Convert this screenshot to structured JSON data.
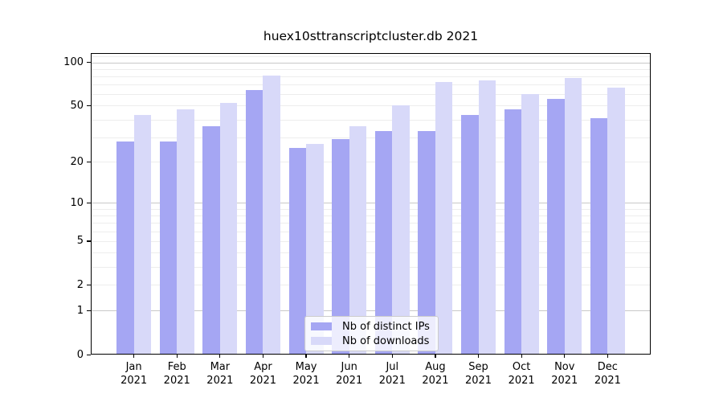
{
  "title": "huex10sttranscriptcluster.db 2021",
  "chart_data": {
    "type": "bar",
    "title": "huex10sttranscriptcluster.db 2021",
    "categories": [
      "Jan 2021",
      "Feb 2021",
      "Mar 2021",
      "Apr 2021",
      "May 2021",
      "Jun 2021",
      "Jul 2021",
      "Aug 2021",
      "Sep 2021",
      "Oct 2021",
      "Nov 2021",
      "Dec 2021"
    ],
    "x_tick_months": [
      "Jan",
      "Feb",
      "Mar",
      "Apr",
      "May",
      "Jun",
      "Jul",
      "Aug",
      "Sep",
      "Oct",
      "Nov",
      "Dec"
    ],
    "x_tick_year": "2021",
    "series": [
      {
        "name": "Nb of distinct IPs",
        "color": "#a5a6f3",
        "values": [
          28,
          28,
          36,
          64,
          25,
          29,
          33,
          33,
          43,
          47,
          56,
          41
        ]
      },
      {
        "name": "Nb of downloads",
        "color": "#d8d9f9",
        "values": [
          43,
          47,
          52,
          81,
          27,
          36,
          50,
          73,
          75,
          60,
          78,
          67
        ]
      }
    ],
    "yscale": "log1p",
    "ylim": [
      0,
      116
    ],
    "y_ticks": [
      0,
      1,
      2,
      5,
      10,
      20,
      50,
      100
    ],
    "y_tick_labels": [
      "0",
      "1",
      "2",
      "5",
      "10",
      "20",
      "50",
      "100"
    ],
    "y_major_gridlines": [
      1,
      10,
      100
    ],
    "y_minor_gridlines": [
      2,
      3,
      4,
      5,
      6,
      7,
      8,
      9,
      20,
      30,
      40,
      50,
      60,
      70,
      80,
      90,
      110
    ],
    "grid": true,
    "legend_position": "lower center",
    "xlabel": "",
    "ylabel": ""
  },
  "legend": {
    "items": [
      {
        "label": "Nb of distinct IPs",
        "color": "#a5a6f3"
      },
      {
        "label": "Nb of downloads",
        "color": "#d8d9f9"
      }
    ]
  },
  "colors": {
    "background": "#ffffff",
    "bar_dark": "#a5a6f3",
    "bar_light": "#d8d9f9",
    "grid_major": "#c9c9c9",
    "grid_minor": "#ededed",
    "axis": "#000000",
    "legend_border": "#cccccc"
  }
}
